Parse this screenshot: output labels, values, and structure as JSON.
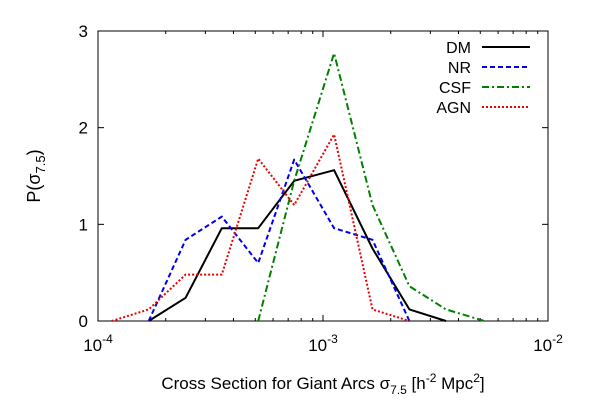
{
  "chart_data": {
    "type": "line",
    "x_scale": "log",
    "xlim": [
      0.0001,
      0.01
    ],
    "ylim": [
      0,
      3
    ],
    "xlabel": {
      "prefix": "Cross Section for Giant Arcs σ",
      "sub": "7.5",
      "mid": " [h",
      "sup1": "-2",
      "mid2": " Mpc",
      "sup2": "2",
      "suffix": "]"
    },
    "ylabel": {
      "prefix": "P(σ",
      "sub": "7.5",
      "suffix": ")"
    },
    "x_ticks": [
      {
        "value": 0.0001,
        "base": "10",
        "exp": "-4"
      },
      {
        "value": 0.001,
        "base": "10",
        "exp": "-3"
      },
      {
        "value": 0.01,
        "base": "10",
        "exp": "-2"
      }
    ],
    "y_ticks": [
      {
        "value": 0,
        "label": "0"
      },
      {
        "value": 1,
        "label": "1"
      },
      {
        "value": 2,
        "label": "2"
      },
      {
        "value": 3,
        "label": "3"
      }
    ],
    "legend_position": "top-right",
    "series": [
      {
        "name": "DM",
        "color": "#000000",
        "dash": "solid",
        "points": [
          [
            0.000168,
            0
          ],
          [
            0.000245,
            0.24
          ],
          [
            0.000355,
            0.96
          ],
          [
            0.000515,
            0.96
          ],
          [
            0.000745,
            1.45
          ],
          [
            0.00112,
            1.56
          ],
          [
            0.00166,
            0.75
          ],
          [
            0.00242,
            0.12
          ],
          [
            0.00352,
            0
          ]
        ]
      },
      {
        "name": "NR",
        "color": "#0000ee",
        "dash": "dashed",
        "points": [
          [
            0.000168,
            0
          ],
          [
            0.000245,
            0.84
          ],
          [
            0.000355,
            1.08
          ],
          [
            0.000515,
            0.6
          ],
          [
            0.000745,
            1.67
          ],
          [
            0.00112,
            0.96
          ],
          [
            0.00166,
            0.84
          ],
          [
            0.00242,
            0
          ]
        ]
      },
      {
        "name": "CSF",
        "color": "#008000",
        "dash": "dashdot",
        "points": [
          [
            0.000515,
            0
          ],
          [
            0.000745,
            1.45
          ],
          [
            0.00112,
            2.77
          ],
          [
            0.00166,
            1.2
          ],
          [
            0.00242,
            0.36
          ],
          [
            0.00352,
            0.12
          ],
          [
            0.00522,
            0
          ]
        ]
      },
      {
        "name": "AGN",
        "color": "#ee0000",
        "dash": "dotted",
        "points": [
          [
            0.000115,
            0
          ],
          [
            0.000168,
            0.12
          ],
          [
            0.000245,
            0.48
          ],
          [
            0.000355,
            0.48
          ],
          [
            0.000515,
            1.68
          ],
          [
            0.000745,
            1.2
          ],
          [
            0.00112,
            1.93
          ],
          [
            0.00166,
            0.12
          ],
          [
            0.00242,
            0
          ]
        ]
      }
    ]
  }
}
